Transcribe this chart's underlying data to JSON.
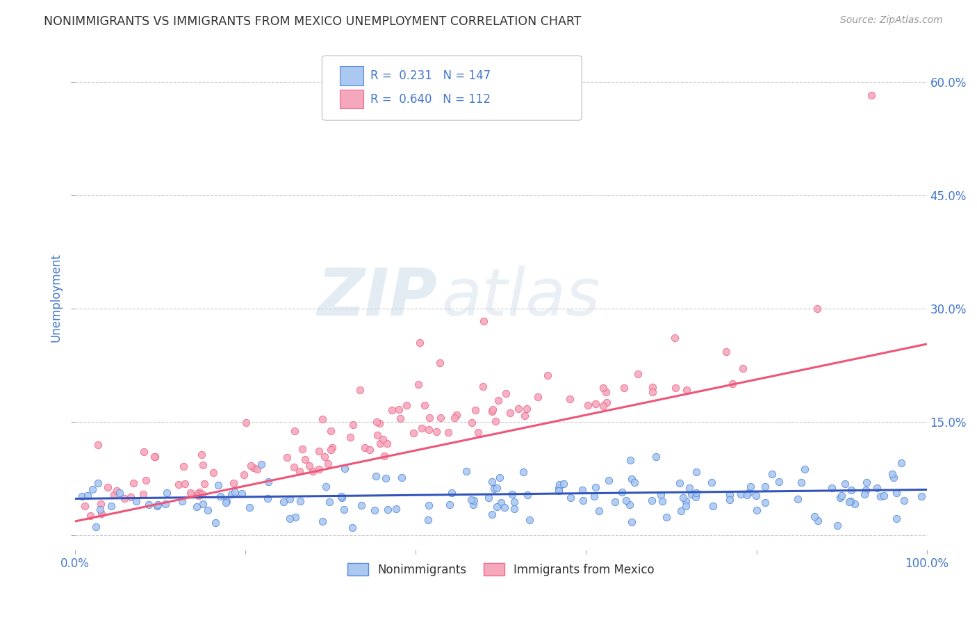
{
  "title": "NONIMMIGRANTS VS IMMIGRANTS FROM MEXICO UNEMPLOYMENT CORRELATION CHART",
  "source": "Source: ZipAtlas.com",
  "ylabel": "Unemployment",
  "watermark_zip": "ZIP",
  "watermark_atlas": "atlas",
  "xlim": [
    0.0,
    1.0
  ],
  "ylim": [
    -0.02,
    0.65
  ],
  "yticks": [
    0.0,
    0.15,
    0.3,
    0.45,
    0.6
  ],
  "yticklabels": [
    "",
    "15.0%",
    "30.0%",
    "45.0%",
    "60.0%"
  ],
  "nonimm_R": 0.231,
  "nonimm_N": 147,
  "imm_R": 0.64,
  "imm_N": 112,
  "nonimm_color": "#aac8f0",
  "imm_color": "#f5a8bc",
  "nonimm_edge_color": "#5588dd",
  "imm_edge_color": "#ee6688",
  "nonimm_line_color": "#3355bb",
  "imm_line_color": "#ee5577",
  "legend_label_nonimm": "Nonimmigrants",
  "legend_label_imm": "Immigrants from Mexico",
  "title_color": "#333333",
  "axis_label_color": "#4477cc",
  "tick_color": "#4477cc",
  "grid_color": "#cccccc",
  "background_color": "#ffffff",
  "nonimm_slope": 0.012,
  "nonimm_intercept": 0.048,
  "imm_slope": 0.235,
  "imm_intercept": 0.018
}
